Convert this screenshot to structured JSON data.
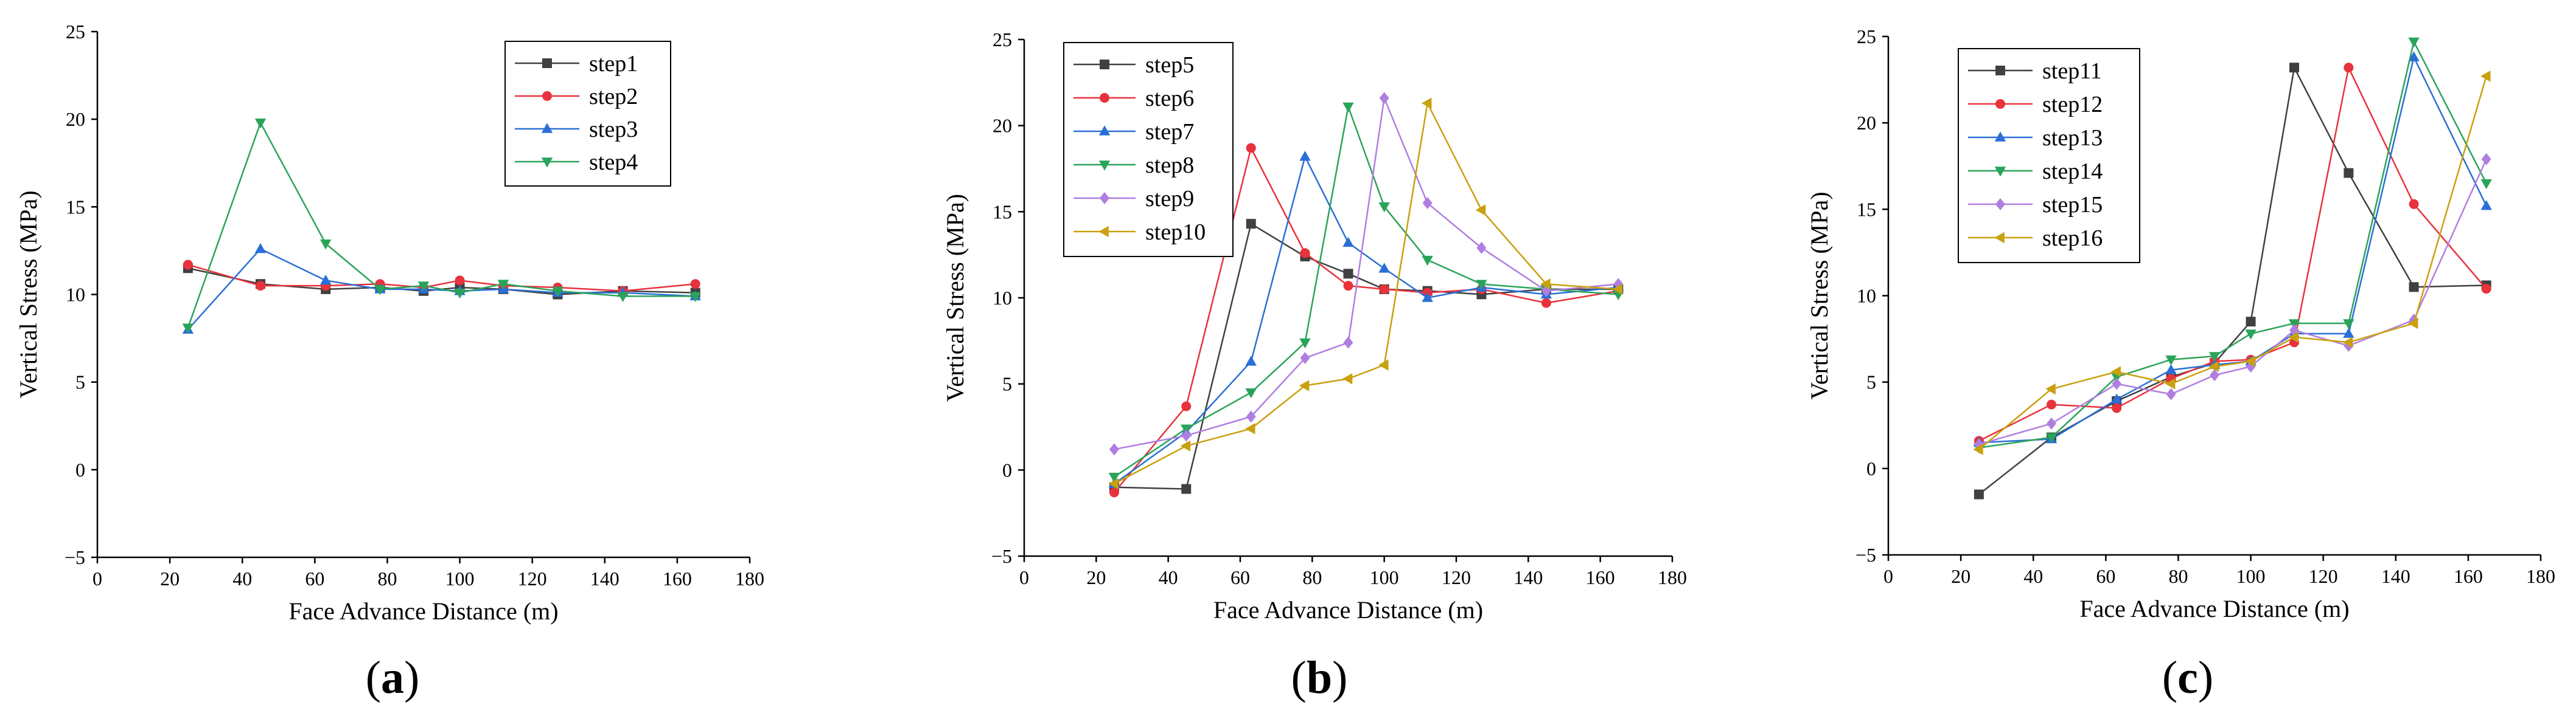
{
  "chart_data": [
    {
      "type": "line",
      "panel_label": "(a)",
      "xlabel": "Face Advance Distance (m)",
      "ylabel": "Vertical Stress (MPa)",
      "xlim": [
        0,
        180
      ],
      "ylim": [
        -5,
        25
      ],
      "xticks": [
        0,
        20,
        40,
        60,
        80,
        100,
        120,
        140,
        160,
        180
      ],
      "yticks": [
        -5,
        0,
        5,
        10,
        15,
        20,
        25
      ],
      "grid": false,
      "legend_position": "top-right",
      "x": [
        25,
        45,
        63,
        78,
        90,
        100,
        112,
        127,
        145,
        165
      ],
      "series": [
        {
          "name": "step1",
          "color": "#404040",
          "marker": "square",
          "values": [
            11.5,
            10.6,
            10.3,
            10.4,
            10.2,
            10.4,
            10.3,
            10.0,
            10.2,
            10.1
          ]
        },
        {
          "name": "step2",
          "color": "#e8323c",
          "marker": "circle",
          "values": [
            11.7,
            10.5,
            10.5,
            10.6,
            10.4,
            10.8,
            10.5,
            10.4,
            10.2,
            10.6
          ]
        },
        {
          "name": "step3",
          "color": "#2a6fd6",
          "marker": "triangle-up",
          "values": [
            8.0,
            12.6,
            10.8,
            10.3,
            10.3,
            10.2,
            10.3,
            10.1,
            10.1,
            9.9
          ]
        },
        {
          "name": "step4",
          "color": "#2aa35a",
          "marker": "triangle-down",
          "values": [
            8.1,
            19.8,
            12.9,
            10.3,
            10.5,
            10.1,
            10.6,
            10.2,
            9.9,
            9.9
          ]
        }
      ]
    },
    {
      "type": "line",
      "panel_label": "(b)",
      "xlabel": "Face Advance Distance (m)",
      "ylabel": "Vertical Stress (MPa)",
      "xlim": [
        0,
        180
      ],
      "ylim": [
        -5,
        25
      ],
      "xticks": [
        0,
        20,
        40,
        60,
        80,
        100,
        120,
        140,
        160,
        180
      ],
      "yticks": [
        -5,
        0,
        5,
        10,
        15,
        20,
        25
      ],
      "grid": false,
      "legend_position": "top-left",
      "x": [
        25,
        45,
        63,
        78,
        90,
        100,
        112,
        127,
        145,
        165
      ],
      "series": [
        {
          "name": "step5",
          "color": "#404040",
          "marker": "square",
          "values": [
            -1.0,
            -1.1,
            14.3,
            12.4,
            11.4,
            10.5,
            10.4,
            10.2,
            10.5,
            10.5
          ]
        },
        {
          "name": "step6",
          "color": "#e8323c",
          "marker": "circle",
          "values": [
            -1.3,
            3.7,
            18.7,
            12.6,
            10.7,
            10.5,
            10.3,
            10.5,
            9.7,
            10.4
          ]
        },
        {
          "name": "step7",
          "color": "#2a6fd6",
          "marker": "triangle-up",
          "values": [
            -0.8,
            2.2,
            6.3,
            18.2,
            13.2,
            11.7,
            10.0,
            10.6,
            10.2,
            10.6
          ]
        },
        {
          "name": "step8",
          "color": "#2aa35a",
          "marker": "triangle-down",
          "values": [
            -0.4,
            2.4,
            4.5,
            7.4,
            21.1,
            15.3,
            12.2,
            10.8,
            10.5,
            10.2
          ]
        },
        {
          "name": "step9",
          "color": "#b07ee0",
          "marker": "diamond",
          "values": [
            1.2,
            2.0,
            3.1,
            6.5,
            7.4,
            21.6,
            15.5,
            12.9,
            10.4,
            10.8
          ]
        },
        {
          "name": "step10",
          "color": "#c9a00e",
          "marker": "triangle-left",
          "values": [
            -0.8,
            1.4,
            2.4,
            4.9,
            5.3,
            6.1,
            21.3,
            15.1,
            10.8,
            10.5
          ]
        }
      ]
    },
    {
      "type": "line",
      "panel_label": "(c)",
      "xlabel": "Face Advance Distance (m)",
      "ylabel": "Vertical Stress (MPa)",
      "xlim": [
        0,
        180
      ],
      "ylim": [
        -5,
        25
      ],
      "xticks": [
        0,
        20,
        40,
        60,
        80,
        100,
        120,
        140,
        160,
        180
      ],
      "yticks": [
        -5,
        0,
        5,
        10,
        15,
        20,
        25
      ],
      "grid": false,
      "legend_position": "top-left",
      "x": [
        25,
        45,
        63,
        78,
        90,
        100,
        112,
        127,
        145,
        165
      ],
      "series": [
        {
          "name": "step11",
          "color": "#404040",
          "marker": "square",
          "values": [
            -1.5,
            1.8,
            3.9,
            5.3,
            6.1,
            8.5,
            23.2,
            17.1,
            10.5,
            10.6
          ]
        },
        {
          "name": "step12",
          "color": "#e8323c",
          "marker": "circle",
          "values": [
            1.6,
            3.7,
            3.5,
            5.2,
            6.2,
            6.3,
            7.3,
            23.2,
            15.3,
            10.4
          ]
        },
        {
          "name": "step13",
          "color": "#2a6fd6",
          "marker": "triangle-up",
          "values": [
            1.5,
            1.7,
            4.0,
            5.7,
            6.0,
            6.2,
            7.8,
            7.8,
            23.8,
            15.2
          ]
        },
        {
          "name": "step14",
          "color": "#2aa35a",
          "marker": "triangle-down",
          "values": [
            1.2,
            1.8,
            5.3,
            6.3,
            6.5,
            7.8,
            8.4,
            8.4,
            24.7,
            16.5
          ]
        },
        {
          "name": "step15",
          "color": "#b07ee0",
          "marker": "diamond",
          "values": [
            1.4,
            2.6,
            4.9,
            4.3,
            5.4,
            5.9,
            8.0,
            7.1,
            8.6,
            17.9
          ]
        },
        {
          "name": "step16",
          "color": "#c9a00e",
          "marker": "triangle-left",
          "values": [
            1.1,
            4.6,
            5.6,
            4.9,
            5.9,
            6.2,
            7.6,
            7.3,
            8.4,
            22.7
          ]
        }
      ]
    }
  ]
}
